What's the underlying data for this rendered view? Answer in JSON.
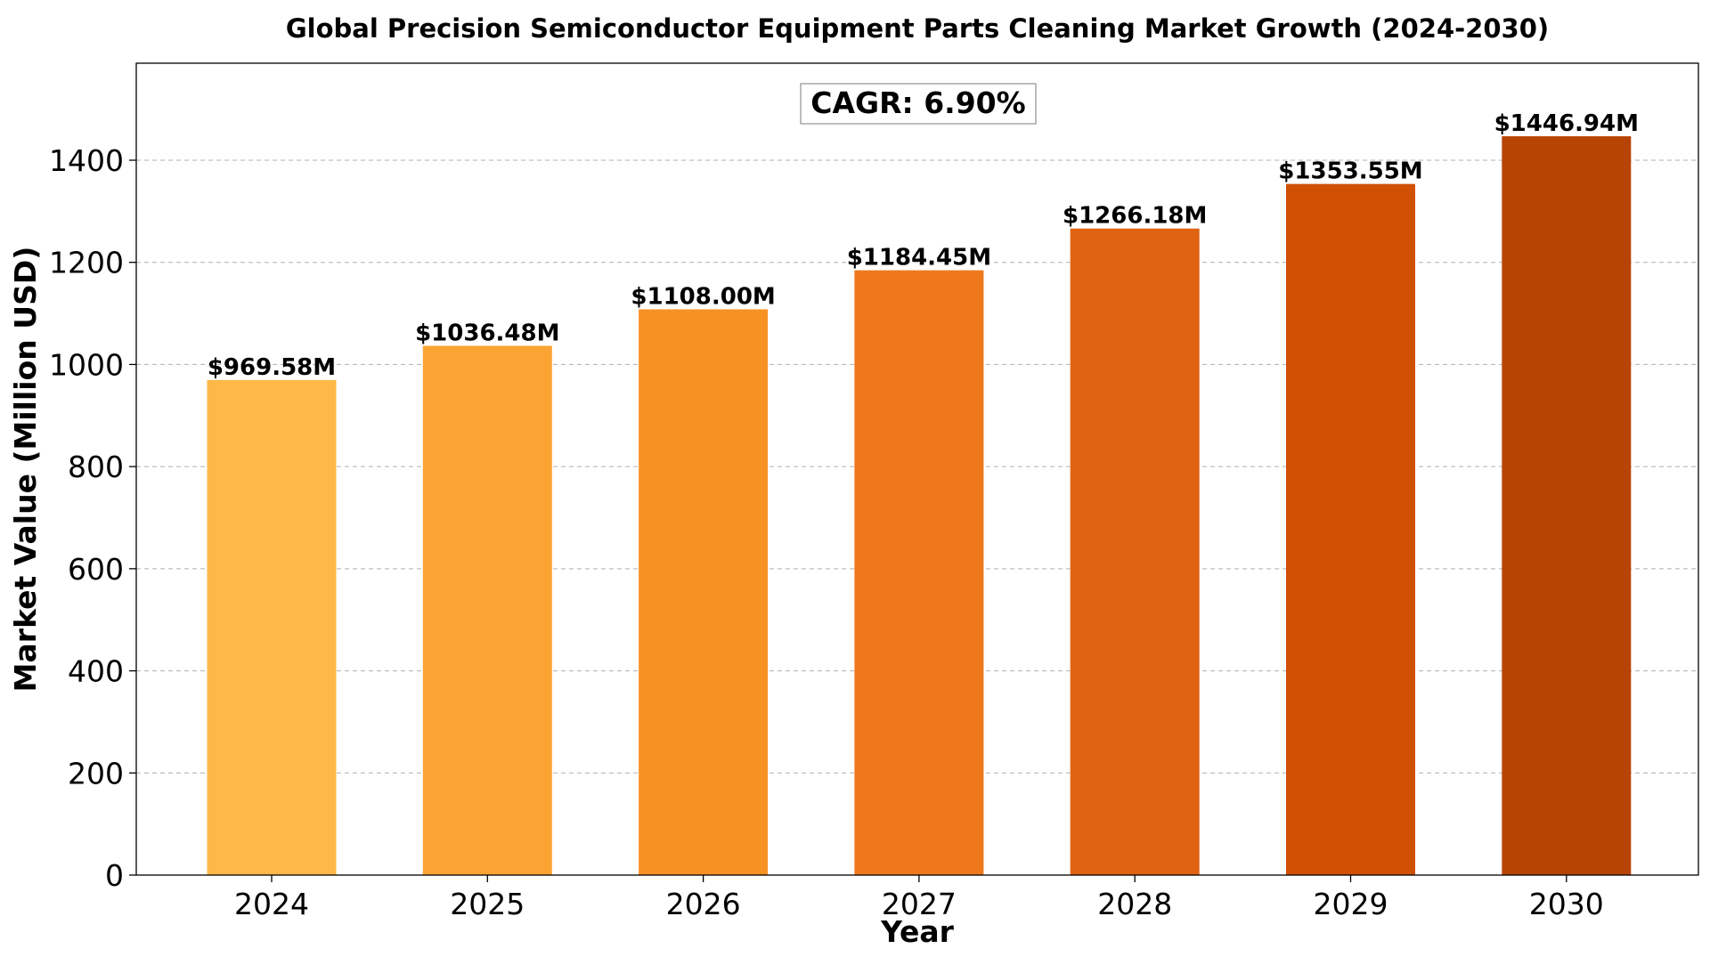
{
  "chart_data": {
    "type": "bar",
    "title": "Global Precision Semiconductor Equipment Parts Cleaning Market Growth (2024-2030)",
    "xlabel": "Year",
    "ylabel": "Market Value (Million USD)",
    "categories": [
      "2024",
      "2025",
      "2026",
      "2027",
      "2028",
      "2029",
      "2030"
    ],
    "values": [
      969.58,
      1036.48,
      1108.0,
      1184.45,
      1266.18,
      1353.55,
      1446.94
    ],
    "data_labels": [
      "$969.58M",
      "$1036.48M",
      "$1108.00M",
      "$1184.45M",
      "$1266.18M",
      "$1353.55M",
      "$1446.94M"
    ],
    "bar_colors": [
      "#fdb847",
      "#fca433",
      "#f89124",
      "#ef781c",
      "#e06312",
      "#d05004",
      "#b84404"
    ],
    "ylim": [
      0,
      1590
    ],
    "yticks": [
      0,
      200,
      400,
      600,
      800,
      1000,
      1200,
      1400
    ],
    "ytick_labels": [
      "0",
      "200",
      "400",
      "600",
      "800",
      "1000",
      "1200",
      "1400"
    ],
    "grid": "horizontal dashed",
    "annotation": "CAGR: 6.90%"
  }
}
